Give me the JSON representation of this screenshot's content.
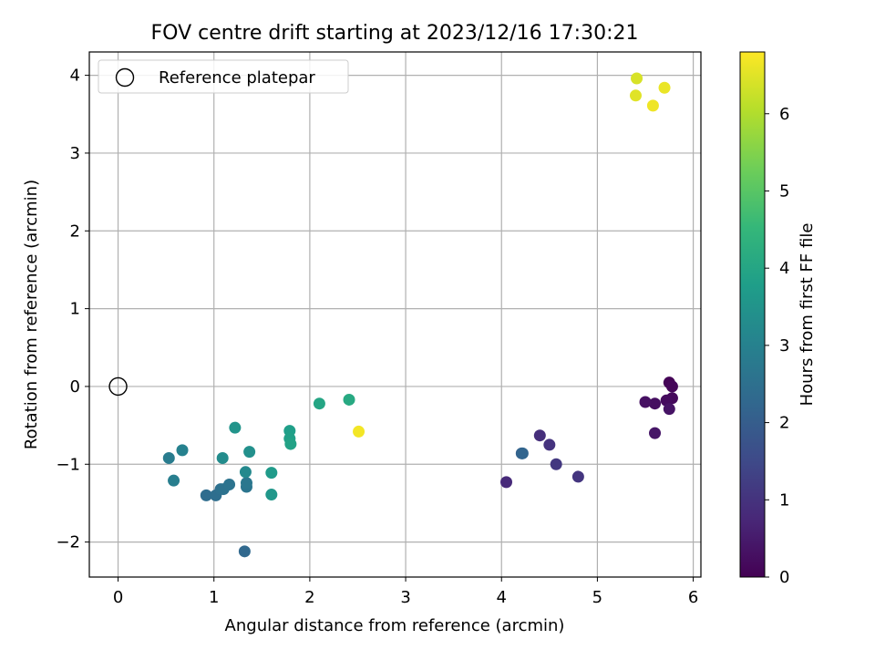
{
  "chart_data": {
    "type": "scatter",
    "title": "FOV centre drift starting at 2023/12/16 17:30:21",
    "xlabel": "Angular distance from reference (arcmin)",
    "ylabel": "Rotation from reference (arcmin)",
    "xlim": [
      -0.3,
      6.08
    ],
    "ylim": [
      -2.45,
      4.3
    ],
    "xticks": [
      0,
      1,
      2,
      3,
      4,
      5,
      6
    ],
    "xtick_labels": [
      "0",
      "1",
      "2",
      "3",
      "4",
      "5",
      "6"
    ],
    "yticks": [
      -2,
      -1,
      0,
      1,
      2,
      3,
      4
    ],
    "ytick_labels": [
      "−2",
      "−1",
      "0",
      "1",
      "2",
      "3",
      "4"
    ],
    "grid": true,
    "legend": {
      "position": "top-left",
      "entries": [
        "Reference platepar"
      ]
    },
    "reference": {
      "x": 0,
      "y": 0,
      "marker": "open-circle"
    },
    "colorbar": {
      "label": "Hours from first FF file",
      "range": [
        0,
        6.8
      ],
      "ticks": [
        0,
        1,
        2,
        3,
        4,
        5,
        6
      ],
      "tick_labels": [
        "0",
        "1",
        "2",
        "3",
        "4",
        "5",
        "6"
      ],
      "colormap": "viridis",
      "colormap_stops": [
        "#440154",
        "#482878",
        "#3e4a89",
        "#31688e",
        "#26828e",
        "#1f9e89",
        "#35b779",
        "#6ece58",
        "#b5de2b",
        "#fde725"
      ]
    },
    "points": [
      {
        "x": 5.75,
        "y": 0.05,
        "h": 0.05
      },
      {
        "x": 5.78,
        "y": 0.0,
        "h": 0.1
      },
      {
        "x": 5.78,
        "y": -0.15,
        "h": 0.15
      },
      {
        "x": 5.72,
        "y": -0.18,
        "h": 0.2
      },
      {
        "x": 5.6,
        "y": -0.22,
        "h": 0.25
      },
      {
        "x": 5.5,
        "y": -0.2,
        "h": 0.3
      },
      {
        "x": 5.75,
        "y": -0.29,
        "h": 0.35
      },
      {
        "x": 5.6,
        "y": -0.6,
        "h": 0.4
      },
      {
        "x": 4.05,
        "y": -1.23,
        "h": 0.8
      },
      {
        "x": 4.4,
        "y": -0.63,
        "h": 0.9
      },
      {
        "x": 4.5,
        "y": -0.75,
        "h": 1.0
      },
      {
        "x": 4.8,
        "y": -1.16,
        "h": 1.05
      },
      {
        "x": 4.57,
        "y": -1.0,
        "h": 1.1
      },
      {
        "x": 4.21,
        "y": -0.86,
        "h": 2.1
      },
      {
        "x": 4.22,
        "y": -0.86,
        "h": 2.2
      },
      {
        "x": 1.32,
        "y": -2.12,
        "h": 2.3
      },
      {
        "x": 0.92,
        "y": -1.4,
        "h": 2.4
      },
      {
        "x": 1.02,
        "y": -1.4,
        "h": 2.45
      },
      {
        "x": 1.07,
        "y": -1.32,
        "h": 2.5
      },
      {
        "x": 1.1,
        "y": -1.32,
        "h": 2.55
      },
      {
        "x": 1.16,
        "y": -1.26,
        "h": 2.6
      },
      {
        "x": 1.34,
        "y": -1.29,
        "h": 2.65
      },
      {
        "x": 1.34,
        "y": -1.24,
        "h": 2.7
      },
      {
        "x": 0.53,
        "y": -0.92,
        "h": 2.85
      },
      {
        "x": 0.58,
        "y": -1.21,
        "h": 2.9
      },
      {
        "x": 0.67,
        "y": -0.82,
        "h": 3.0
      },
      {
        "x": 1.33,
        "y": -1.1,
        "h": 3.2
      },
      {
        "x": 1.09,
        "y": -0.92,
        "h": 3.3
      },
      {
        "x": 1.37,
        "y": -0.84,
        "h": 3.4
      },
      {
        "x": 1.22,
        "y": -0.53,
        "h": 3.5
      },
      {
        "x": 1.6,
        "y": -1.39,
        "h": 3.6
      },
      {
        "x": 1.6,
        "y": -1.11,
        "h": 3.7
      },
      {
        "x": 1.79,
        "y": -0.57,
        "h": 3.8
      },
      {
        "x": 1.79,
        "y": -0.67,
        "h": 3.85
      },
      {
        "x": 1.8,
        "y": -0.74,
        "h": 3.9
      },
      {
        "x": 2.1,
        "y": -0.22,
        "h": 4.0
      },
      {
        "x": 2.41,
        "y": -0.17,
        "h": 4.1
      },
      {
        "x": 5.41,
        "y": 3.96,
        "h": 6.4
      },
      {
        "x": 5.4,
        "y": 3.74,
        "h": 6.5
      },
      {
        "x": 5.7,
        "y": 3.84,
        "h": 6.6
      },
      {
        "x": 5.58,
        "y": 3.61,
        "h": 6.65
      },
      {
        "x": 2.51,
        "y": -0.58,
        "h": 6.7
      }
    ]
  }
}
